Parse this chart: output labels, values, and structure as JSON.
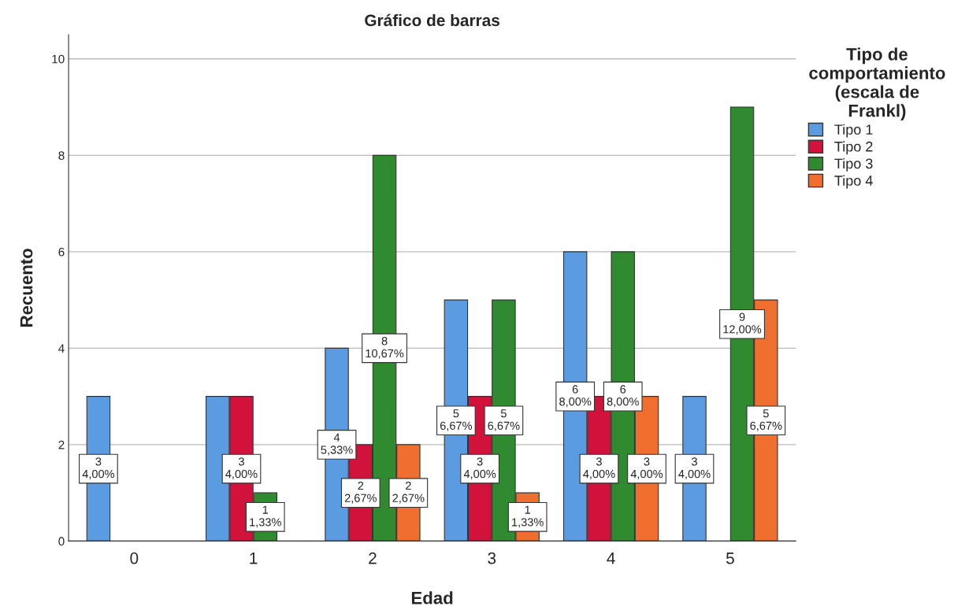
{
  "chart_data": {
    "type": "bar",
    "title": "Gráfico de barras",
    "xlabel": "Edad",
    "ylabel": "Recuento",
    "legend_title": "Tipo de\ncomportamiento\n(escala de\nFrankl)",
    "categories": [
      "0",
      "1",
      "2",
      "3",
      "4",
      "5"
    ],
    "series": [
      {
        "name": "Tipo 1",
        "color": "#5b9be1",
        "values": [
          3,
          3,
          4,
          5,
          6,
          3
        ],
        "value_labels": [
          "3\n4,00%",
          null,
          "4\n5,33%",
          "5\n6,67%",
          "6\n8,00%",
          "3\n4,00%"
        ]
      },
      {
        "name": "Tipo 2",
        "color": "#d3123c",
        "values": [
          null,
          3,
          2,
          3,
          3,
          null
        ],
        "value_labels": [
          null,
          "3\n4,00%",
          "2\n2,67%",
          "3\n4,00%",
          "3\n4,00%",
          null
        ]
      },
      {
        "name": "Tipo 3",
        "color": "#2f8a30",
        "values": [
          null,
          1,
          8,
          5,
          6,
          9
        ],
        "value_labels": [
          null,
          "1\n1,33%",
          "8\n10,67%",
          "5\n6,67%",
          "6\n8,00%",
          "9\n12,00%"
        ]
      },
      {
        "name": "Tipo 4",
        "color": "#f06e2e",
        "values": [
          null,
          null,
          2,
          1,
          3,
          5
        ],
        "value_labels": [
          null,
          null,
          "2\n2,67%",
          "1\n1,33%",
          "3\n4,00%",
          "5\n6,67%"
        ]
      }
    ],
    "ylim": [
      0,
      10.5
    ],
    "yticks": [
      0,
      2,
      4,
      6,
      8,
      10
    ],
    "grid": "y",
    "legend": "top right"
  }
}
